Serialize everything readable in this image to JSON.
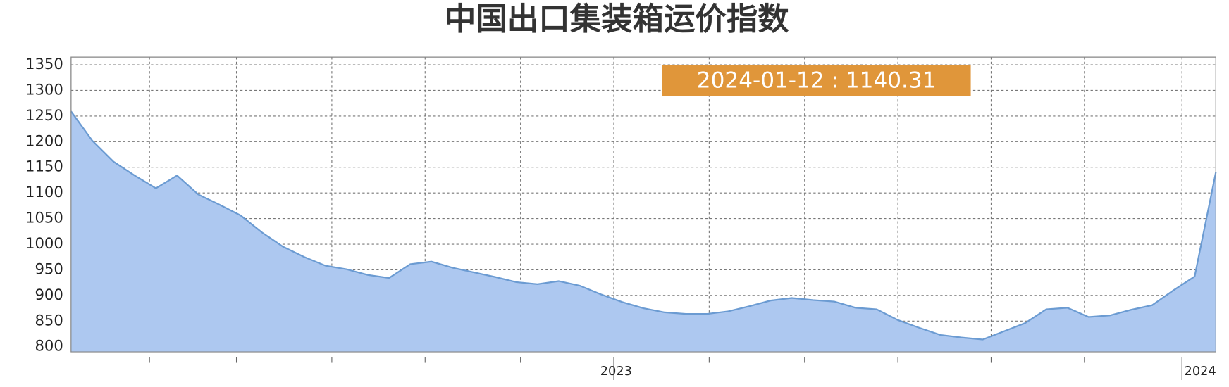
{
  "chart_data": {
    "type": "area",
    "title": "中国出口集装箱运价指数",
    "annotation": "2024-01-12 : 1140.31",
    "color": "#adc8f0",
    "line_color": "#6b9bd2",
    "categories": [
      null,
      null,
      null,
      null,
      null,
      null,
      null,
      null,
      null,
      null,
      null,
      null,
      null,
      null,
      null,
      null,
      null,
      null,
      null,
      null,
      null,
      null,
      null,
      null,
      null,
      null,
      null,
      null,
      null,
      null,
      null,
      null,
      null,
      null,
      null,
      null,
      null,
      null,
      null,
      null,
      null,
      null,
      null,
      null,
      null,
      null,
      null,
      null,
      null,
      null,
      null,
      null,
      null,
      null,
      null
    ],
    "values": [
      1259,
      1202,
      1161,
      1134,
      1109,
      1134,
      1097,
      1077,
      1056,
      1023,
      995,
      975,
      958,
      951,
      940,
      934,
      961,
      966,
      954,
      945,
      936,
      926,
      922,
      928,
      919,
      902,
      887,
      875,
      867,
      864,
      864,
      869,
      879,
      890,
      895,
      891,
      888,
      876,
      873,
      852,
      837,
      823,
      818,
      814,
      830,
      846,
      873,
      876,
      858,
      861,
      872,
      881,
      910,
      937,
      1140.31
    ],
    "xlim": [
      0,
      54
    ],
    "xticks": [
      {
        "value": 25.6,
        "label": "2023"
      },
      {
        "value": 52.4,
        "label": "2024"
      }
    ],
    "xminor": [
      3.7,
      7.8,
      12.3,
      16.7,
      21.2,
      30.1,
      34.6,
      39.0,
      43.4,
      47.8
    ],
    "ylim": [
      790,
      1365
    ],
    "yticks": [
      800,
      850,
      900,
      950,
      1000,
      1050,
      1100,
      1150,
      1200,
      1250,
      1300,
      1350
    ],
    "grid": true
  }
}
